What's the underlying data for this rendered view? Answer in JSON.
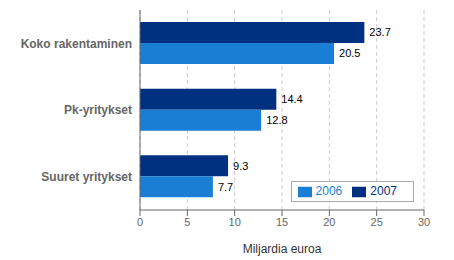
{
  "chart_data": {
    "type": "bar",
    "orientation": "horizontal",
    "categories": [
      "Koko rakentaminen",
      "Pk-yritykset",
      "Suuret yritykset"
    ],
    "series": [
      {
        "name": "2007",
        "color": "#003080",
        "values": [
          23.7,
          14.4,
          9.3
        ]
      },
      {
        "name": "2006",
        "color": "#1a7fd4",
        "values": [
          20.5,
          12.8,
          7.7
        ]
      }
    ],
    "xlabel": "Miljardia euroa",
    "xlim": [
      0,
      30
    ],
    "xticks": [
      0,
      5,
      10,
      15,
      20,
      25,
      30
    ],
    "grid": true,
    "legend": "lower right",
    "data_labels": true
  }
}
